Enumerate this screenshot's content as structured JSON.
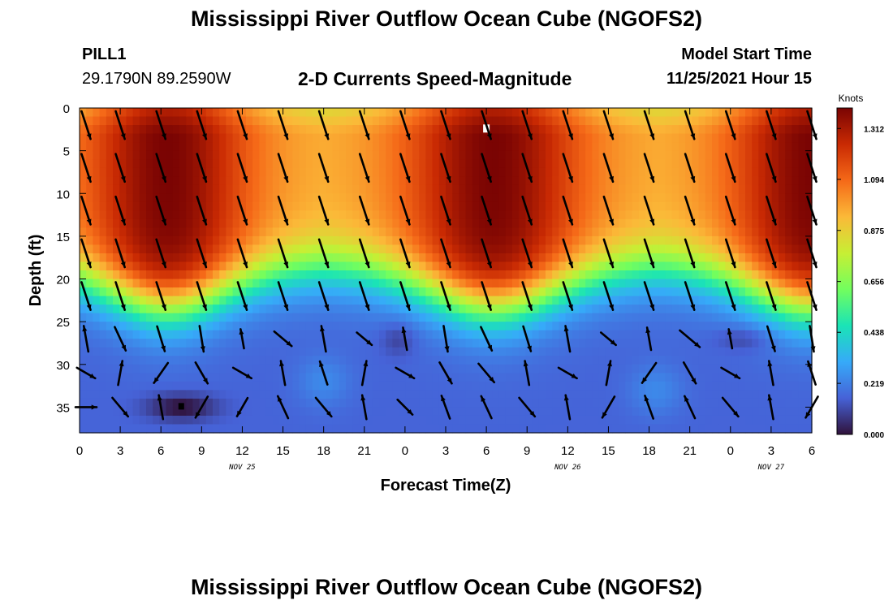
{
  "header": {
    "title": "Mississippi River Outflow Ocean Cube (NGOFS2)",
    "station": "PILL1",
    "coords": "29.1790N  89.2590W",
    "subtitle": "2-D Currents Speed-Magnitude",
    "model_start_label": "Model Start Time",
    "model_start_value": "11/25/2021 Hour 15"
  },
  "footer": {
    "title": "Mississippi River Outflow Ocean Cube (NGOFS2)"
  },
  "chart_data": {
    "type": "heatmap",
    "title": "2-D Currents Speed-Magnitude",
    "xlabel": "Forecast Time(Z)",
    "ylabel": "Depth (ft)",
    "x_unit": "hours",
    "x_range": [
      0,
      54
    ],
    "y_range": [
      0,
      38
    ],
    "y_ticks": [
      0,
      5,
      10,
      15,
      20,
      25,
      30,
      35
    ],
    "x_tick_labels": [
      "0",
      "3",
      "6",
      "9",
      "12",
      "15",
      "18",
      "21",
      "0",
      "3",
      "6",
      "9",
      "12",
      "15",
      "18",
      "21",
      "0",
      "3",
      "6"
    ],
    "date_labels": [
      {
        "text": "NOV 25",
        "hour": 12
      },
      {
        "text": "NOV 26",
        "hour": 36
      },
      {
        "text": "NOV 27",
        "hour": 51
      }
    ],
    "colorbar": {
      "unit": "Knots",
      "tick_labels": [
        "1.312",
        "1.094",
        "0.875",
        "0.656",
        "0.438",
        "0.219",
        "0.000"
      ],
      "min": 0.0,
      "max": 1.4,
      "colors": [
        "#30123b",
        "#4662d7",
        "#36aaf9",
        "#1ae4b6",
        "#72fe5e",
        "#c7ef34",
        "#fbb938",
        "#f56918",
        "#c92a03",
        "#7a0403"
      ]
    },
    "vector_grid": {
      "times_hours": [
        0,
        3,
        6,
        9,
        12,
        15,
        18,
        21,
        24,
        27,
        30,
        33,
        36,
        39,
        42,
        45,
        48,
        51,
        54
      ],
      "depths_ft": [
        2,
        7,
        12,
        17,
        22,
        27,
        31,
        35
      ]
    },
    "shallow_speed_peaks_hours": [
      6.5,
      30.5,
      54
    ],
    "deep_speed_minimum": {
      "hour": 7.5,
      "depth": 35
    }
  }
}
